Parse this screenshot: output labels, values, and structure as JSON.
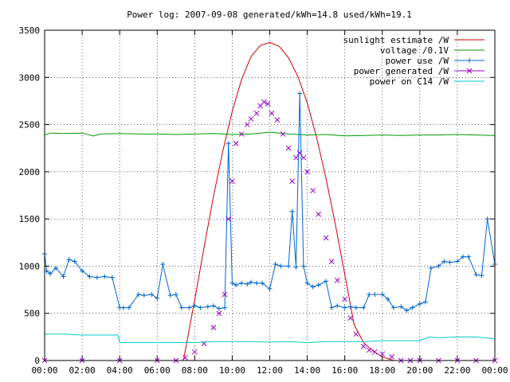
{
  "chart_data": {
    "type": "line",
    "title": "Power log: 2007-09-08 generated/kWh=14.8 used/kWh=19.1",
    "xlabel": "",
    "ylabel": "",
    "xlim": [
      0,
      24
    ],
    "ylim": [
      0,
      3500
    ],
    "x_ticks": [
      "00:00",
      "02:00",
      "04:00",
      "06:00",
      "08:00",
      "10:00",
      "12:00",
      "14:00",
      "16:00",
      "18:00",
      "20:00",
      "22:00",
      "00:00"
    ],
    "y_ticks": [
      0,
      500,
      1000,
      1500,
      2000,
      2500,
      3000,
      3500
    ],
    "legend_position": "top-right",
    "series": [
      {
        "name": "sunlight estimate /W",
        "color": "#cc0000",
        "style": "line",
        "x": [
          7.4,
          8.0,
          8.5,
          9.0,
          9.5,
          10.0,
          10.5,
          11.0,
          11.5,
          12.0,
          12.5,
          13.0,
          13.5,
          14.0,
          14.5,
          15.0,
          15.5,
          16.0,
          16.5,
          17.0,
          17.5,
          18.0,
          18.6
        ],
        "values": [
          0,
          640,
          1200,
          1740,
          2220,
          2640,
          2980,
          3220,
          3340,
          3370,
          3330,
          3210,
          3010,
          2730,
          2360,
          1930,
          1440,
          910,
          380,
          190,
          100,
          40,
          0
        ]
      },
      {
        "name": "voltage /0.1V",
        "color": "#009900",
        "style": "line",
        "x": [
          0.0,
          0.3,
          1.0,
          2.0,
          2.6,
          3.0,
          4.0,
          5.0,
          6.0,
          7.0,
          8.0,
          9.0,
          10.0,
          11.0,
          12.0,
          13.0,
          14.0,
          15.0,
          16.0,
          17.0,
          18.0,
          19.0,
          20.0,
          21.0,
          22.0,
          23.0,
          24.0
        ],
        "values": [
          2390,
          2410,
          2405,
          2410,
          2380,
          2400,
          2405,
          2400,
          2400,
          2395,
          2400,
          2405,
          2395,
          2400,
          2420,
          2400,
          2390,
          2395,
          2380,
          2385,
          2390,
          2385,
          2390,
          2390,
          2395,
          2390,
          2385
        ]
      },
      {
        "name": "power use /W",
        "color": "#0066cc",
        "style": "linepoints",
        "x": [
          0.0,
          0.1,
          0.3,
          0.6,
          1.0,
          1.3,
          1.6,
          2.0,
          2.4,
          2.8,
          3.2,
          3.6,
          4.0,
          4.2,
          4.5,
          5.0,
          5.3,
          5.7,
          6.0,
          6.3,
          6.7,
          7.0,
          7.3,
          7.7,
          8.0,
          8.3,
          8.7,
          9.0,
          9.3,
          9.6,
          9.8,
          10.0,
          10.2,
          10.5,
          10.8,
          11.0,
          11.3,
          11.6,
          12.0,
          12.3,
          12.6,
          13.0,
          13.2,
          13.4,
          13.6,
          13.8,
          14.0,
          14.3,
          14.6,
          15.0,
          15.3,
          15.6,
          16.0,
          16.3,
          16.6,
          17.0,
          17.3,
          17.6,
          18.0,
          18.3,
          18.6,
          19.0,
          19.3,
          19.6,
          20.0,
          20.3,
          20.6,
          21.0,
          21.3,
          21.6,
          22.0,
          22.3,
          22.6,
          23.0,
          23.3,
          23.6,
          24.0
        ],
        "values": [
          1130,
          950,
          920,
          980,
          890,
          1070,
          1050,
          950,
          890,
          880,
          890,
          880,
          560,
          560,
          560,
          700,
          690,
          700,
          660,
          1020,
          690,
          700,
          560,
          560,
          580,
          560,
          570,
          580,
          550,
          560,
          2300,
          820,
          800,
          820,
          810,
          830,
          820,
          820,
          760,
          1020,
          1000,
          1000,
          1580,
          990,
          2830,
          1000,
          820,
          780,
          800,
          840,
          560,
          580,
          560,
          570,
          560,
          560,
          700,
          700,
          700,
          650,
          560,
          570,
          530,
          560,
          600,
          620,
          980,
          1000,
          1050,
          1040,
          1050,
          1100,
          1100,
          910,
          900,
          1500,
          1020
        ]
      },
      {
        "name": "power generated /W",
        "color": "#9900cc",
        "style": "points",
        "x": [
          0.0,
          2.0,
          4.0,
          6.0,
          7.0,
          7.5,
          8.0,
          8.5,
          9.0,
          9.3,
          9.6,
          9.8,
          10.0,
          10.2,
          10.5,
          10.8,
          11.0,
          11.3,
          11.5,
          11.7,
          11.9,
          12.1,
          12.4,
          12.7,
          13.0,
          13.2,
          13.4,
          13.6,
          13.8,
          14.0,
          14.3,
          14.6,
          15.0,
          15.3,
          15.6,
          16.0,
          16.3,
          16.6,
          17.0,
          17.3,
          17.6,
          18.0,
          18.5,
          19.0,
          19.5,
          20.0,
          21.0,
          22.0,
          23.0,
          24.0
        ],
        "values": [
          0,
          0,
          0,
          0,
          0,
          30,
          90,
          180,
          350,
          500,
          700,
          1500,
          1900,
          2300,
          2400,
          2500,
          2560,
          2620,
          2700,
          2740,
          2720,
          2620,
          2550,
          2400,
          2250,
          1900,
          2150,
          2200,
          2150,
          2000,
          1800,
          1550,
          1300,
          1050,
          850,
          650,
          450,
          280,
          150,
          110,
          90,
          70,
          40,
          0,
          0,
          0,
          0,
          0,
          0,
          0
        ]
      },
      {
        "name": "power on C14 /W",
        "color": "#00cccc",
        "style": "line",
        "x": [
          0.0,
          1.0,
          2.0,
          3.0,
          3.9,
          4.0,
          5.0,
          6.0,
          7.0,
          8.0,
          9.0,
          10.0,
          11.0,
          12.0,
          13.0,
          14.0,
          15.0,
          16.0,
          17.0,
          18.0,
          19.0,
          20.0,
          20.5,
          21.0,
          22.0,
          23.0,
          24.0
        ],
        "values": [
          280,
          280,
          270,
          270,
          270,
          190,
          190,
          190,
          190,
          190,
          200,
          200,
          200,
          195,
          200,
          190,
          200,
          200,
          200,
          210,
          210,
          210,
          250,
          240,
          250,
          250,
          230
        ]
      }
    ]
  }
}
